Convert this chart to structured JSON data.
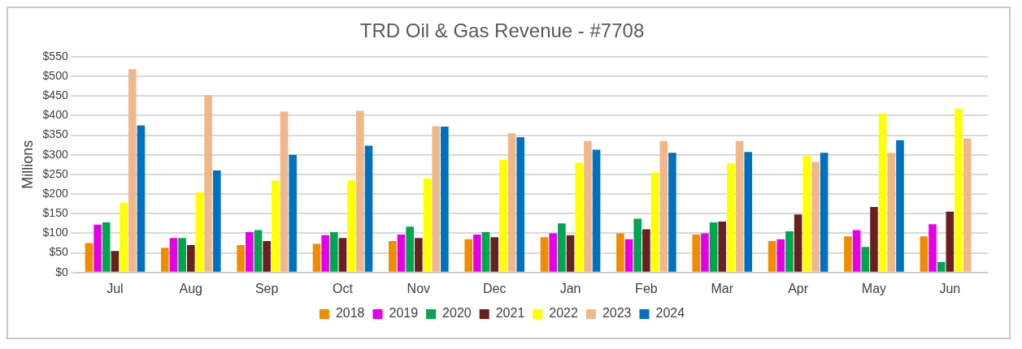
{
  "chart_data": {
    "type": "bar",
    "title": "TRD Oil & Gas Revenue - #7708",
    "ylabel": "Millions",
    "categories": [
      "Jul",
      "Aug",
      "Sep",
      "Oct",
      "Nov",
      "Dec",
      "Jan",
      "Feb",
      "Mar",
      "Apr",
      "May",
      "Jun"
    ],
    "series": [
      {
        "name": "2018",
        "color": "#f08c00",
        "values": [
          75,
          63,
          70,
          73,
          80,
          85,
          90,
          100,
          97,
          80,
          92,
          92
        ]
      },
      {
        "name": "2019",
        "color": "#e600e6",
        "values": [
          122,
          88,
          103,
          95,
          97,
          97,
          100,
          85,
          100,
          85,
          108,
          123
        ]
      },
      {
        "name": "2020",
        "color": "#00a550",
        "values": [
          128,
          88,
          108,
          103,
          117,
          103,
          125,
          137,
          128,
          105,
          65,
          27
        ]
      },
      {
        "name": "2021",
        "color": "#6b2020",
        "values": [
          55,
          70,
          80,
          88,
          88,
          90,
          95,
          110,
          130,
          148,
          167,
          155
        ]
      },
      {
        "name": "2022",
        "color": "#ffff00",
        "values": [
          178,
          205,
          235,
          235,
          240,
          287,
          280,
          255,
          278,
          297,
          405,
          418
        ]
      },
      {
        "name": "2023",
        "color": "#f0b88a",
        "values": [
          518,
          452,
          410,
          412,
          373,
          355,
          335,
          335,
          335,
          282,
          305,
          342
        ]
      },
      {
        "name": "2024",
        "color": "#0070c0",
        "values": [
          375,
          260,
          300,
          323,
          372,
          345,
          313,
          305,
          307,
          305,
          337,
          null
        ]
      }
    ],
    "ylim": [
      0,
      550
    ],
    "yticks": [
      {
        "value": 0,
        "label": "$0"
      },
      {
        "value": 50,
        "label": "$50"
      },
      {
        "value": 100,
        "label": "$100"
      },
      {
        "value": 150,
        "label": "$150"
      },
      {
        "value": 200,
        "label": "$200"
      },
      {
        "value": 250,
        "label": "$250"
      },
      {
        "value": 300,
        "label": "$300"
      },
      {
        "value": 350,
        "label": "$350"
      },
      {
        "value": 400,
        "label": "$400"
      },
      {
        "value": 450,
        "label": "$450"
      },
      {
        "value": 500,
        "label": "$500"
      },
      {
        "value": 550,
        "label": "$550"
      }
    ],
    "grid": "y",
    "legend": "bottom"
  }
}
